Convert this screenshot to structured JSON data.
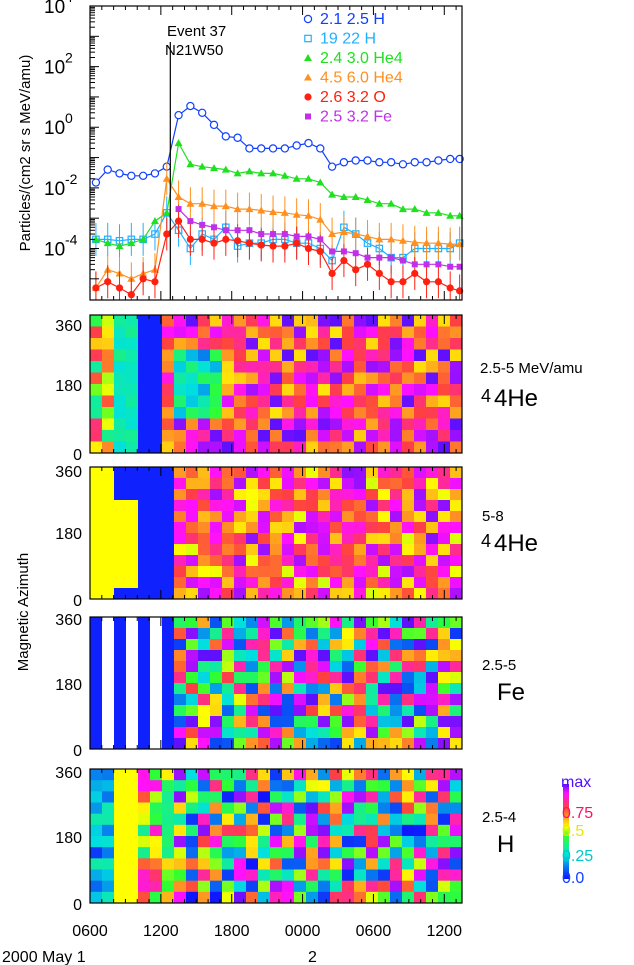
{
  "event": {
    "name": "Event 37",
    "location": "N21W50"
  },
  "top_ylabel": "Particles/(cm2  sr s MeV/amu)",
  "azimuth_ylabel": "Magnetic Azimuth",
  "colorbar": {
    "labels": [
      "max",
      "0.75",
      "0.5",
      "0.25",
      "0.0"
    ]
  },
  "date_labels": [
    "2000 May  1",
    "2"
  ],
  "chart_data": [
    {
      "type": "scatter",
      "yscale": "log",
      "ylim": [
        2e-06,
        10000.0
      ],
      "xlim": [
        6,
        37.5
      ],
      "x_unit": "hours since 2000 May 1 00:00 UT",
      "x_ticks": [
        "0600",
        "1200",
        "1800",
        "0000",
        "0600",
        "1200"
      ],
      "y_ticks": [
        "4",
        "2",
        "0",
        "-2",
        "-4"
      ],
      "event_time": 12.8,
      "x": [
        6.5,
        7.5,
        8.5,
        9.5,
        10.5,
        11.5,
        12.5,
        13.5,
        14.5,
        15.5,
        16.5,
        17.5,
        18.5,
        19.5,
        20.5,
        21.5,
        22.5,
        23.5,
        24.5,
        25.5,
        26.5,
        27.5,
        28.5,
        29.5,
        30.5,
        31.5,
        32.5,
        33.5,
        34.5,
        35.5,
        36.5,
        37.3
      ],
      "series": [
        {
          "name": "2.1 2.5 H",
          "color": "#1040ff",
          "marker": "open-circle",
          "values": [
            0.015,
            0.04,
            0.03,
            0.025,
            0.025,
            0.03,
            0.05,
            2.5,
            5,
            3,
            1.2,
            0.5,
            0.45,
            0.2,
            0.2,
            0.2,
            0.2,
            0.25,
            0.3,
            0.2,
            0.05,
            0.07,
            0.08,
            0.08,
            0.07,
            0.07,
            0.06,
            0.07,
            0.07,
            0.08,
            0.09,
            0.09
          ]
        },
        {
          "name": "19 22 H",
          "color": "#20b0ff",
          "marker": "open-square",
          "values": [
            0.0002,
            0.0002,
            0.00018,
            0.0002,
            0.0002,
            0.0003,
            0.0015,
            0.0004,
            0.0001,
            0.0003,
            0.0002,
            0.0005,
            0.00012,
            0.00015,
            0.00015,
            0.0002,
            0.0002,
            0.00015,
            0.00015,
            0.0001,
            4e-05,
            0.0005,
            0.0003,
            0.00015,
            0.0001,
            5e-05,
            5e-05,
            0.0001,
            0.0001,
            0.0001,
            0.0001,
            0.00015
          ]
        },
        {
          "name": "2.4 3.0 He4",
          "color": "#20e020",
          "marker": "filled-triangle",
          "values": [
            0.0002,
            0.00015,
            0.00012,
            0.00015,
            0.0002,
            0.0008,
            0.0015,
            0.3,
            0.06,
            0.05,
            0.045,
            0.04,
            0.03,
            0.035,
            0.03,
            0.03,
            0.025,
            0.02,
            0.02,
            0.015,
            0.006,
            0.005,
            0.005,
            0.004,
            0.003,
            0.003,
            0.002,
            0.002,
            0.0015,
            0.0015,
            0.0012,
            0.0012
          ]
        },
        {
          "name": "4.5 6.0 He4",
          "color": "#ff9020",
          "marker": "filled-triangle",
          "values": [
            5e-06,
            2e-05,
            1.5e-05,
            1e-05,
            1.5e-05,
            2e-05,
            0.02,
            0.005,
            0.003,
            0.003,
            0.0025,
            0.0025,
            0.002,
            0.002,
            0.0018,
            0.0016,
            0.0015,
            0.0013,
            0.0012,
            0.0009,
            0.0003,
            0.00035,
            0.0003,
            0.00025,
            0.0002,
            0.0002,
            0.00018,
            0.00016,
            0.00015,
            0.00015,
            0.00014,
            0.00014
          ]
        },
        {
          "name": "2.6 3.2 O",
          "color": "#ff2010",
          "marker": "filled-circle",
          "values": [
            5e-06,
            8e-06,
            5e-06,
            3e-06,
            1e-05,
            8e-06,
            0.0003,
            0.0008,
            0.0002,
            0.0002,
            0.00015,
            0.0002,
            0.00018,
            0.00015,
            0.00013,
            0.00012,
            0.00012,
            0.00015,
            0.0001,
            8e-05,
            1.5e-05,
            4e-05,
            2e-05,
            3e-05,
            1.5e-05,
            8e-06,
            8e-06,
            1.5e-05,
            8e-06,
            8e-06,
            5e-06,
            4e-06
          ]
        },
        {
          "name": "2.5 3.2 Fe",
          "color": "#c030e8",
          "marker": "filled-square",
          "values": [
            null,
            null,
            null,
            null,
            null,
            null,
            null,
            0.002,
            0.0008,
            0.0006,
            0.0005,
            0.0004,
            0.0004,
            0.0004,
            0.0003,
            0.0003,
            0.0003,
            0.00025,
            0.00025,
            0.0002,
            8e-05,
            8e-05,
            7e-05,
            5e-05,
            5e-05,
            5e-05,
            4e-05,
            3e-05,
            3e-05,
            3e-05,
            2.5e-05,
            2.5e-05
          ]
        }
      ]
    },
    {
      "type": "heatmap",
      "species": "4He",
      "energy": "2.5-5 MeV/amu",
      "ylim": [
        0,
        360
      ],
      "y_ticks": [
        "360",
        "180",
        "0"
      ]
    },
    {
      "type": "heatmap",
      "species": "4He",
      "energy": "5-8",
      "ylim": [
        0,
        360
      ],
      "y_ticks": [
        "360",
        "180",
        "0"
      ]
    },
    {
      "type": "heatmap",
      "species": "Fe",
      "energy": "2.5-5",
      "ylim": [
        0,
        360
      ],
      "y_ticks": [
        "360",
        "180",
        "0"
      ]
    },
    {
      "type": "heatmap",
      "species": "H",
      "energy": "2.5-4",
      "ylim": [
        0,
        360
      ],
      "y_ticks": [
        "360",
        "180",
        "0"
      ]
    }
  ]
}
